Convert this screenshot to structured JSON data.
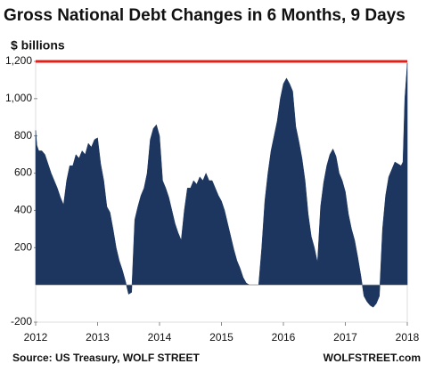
{
  "chart_data": {
    "type": "area",
    "title": "Gross National Debt Changes in 6 Months, 9 Days",
    "y_label": "$ billions",
    "source": "Source: US Treasury, WOLF STREET",
    "credit": "WOLFSTREET.com",
    "color": "#1d3660",
    "reference_line": {
      "value": 1200,
      "color": "#e0201b"
    },
    "xlim": [
      2012,
      2018
    ],
    "xticks": [
      2012,
      2013,
      2014,
      2015,
      2016,
      2017,
      2018
    ],
    "ylim": [
      -200,
      1200
    ],
    "yticks": [
      {
        "value": -200,
        "label": "-200"
      },
      200,
      400,
      600,
      800,
      {
        "value": 1000,
        "label": "1,000"
      },
      {
        "value": 1200,
        "label": "1,200"
      }
    ],
    "x": [
      2012.0,
      2012.02,
      2012.05,
      2012.1,
      2012.15,
      2012.2,
      2012.25,
      2012.3,
      2012.35,
      2012.4,
      2012.45,
      2012.5,
      2012.55,
      2012.6,
      2012.65,
      2012.7,
      2012.75,
      2012.8,
      2012.85,
      2012.9,
      2012.95,
      2013.0,
      2013.05,
      2013.1,
      2013.15,
      2013.2,
      2013.25,
      2013.3,
      2013.35,
      2013.4,
      2013.45,
      2013.5,
      2013.55,
      2013.6,
      2013.65,
      2013.7,
      2013.75,
      2013.8,
      2013.85,
      2013.9,
      2013.95,
      2014.0,
      2014.05,
      2014.1,
      2014.15,
      2014.2,
      2014.25,
      2014.3,
      2014.35,
      2014.4,
      2014.45,
      2014.5,
      2014.55,
      2014.6,
      2014.65,
      2014.7,
      2014.75,
      2014.8,
      2014.85,
      2014.9,
      2014.95,
      2015.0,
      2015.05,
      2015.1,
      2015.15,
      2015.2,
      2015.25,
      2015.3,
      2015.35,
      2015.4,
      2015.45,
      2015.5,
      2015.55,
      2015.6,
      2015.65,
      2015.7,
      2015.75,
      2015.8,
      2015.85,
      2015.9,
      2015.95,
      2016.0,
      2016.05,
      2016.1,
      2016.15,
      2016.2,
      2016.25,
      2016.3,
      2016.35,
      2016.4,
      2016.45,
      2016.5,
      2016.55,
      2016.6,
      2016.65,
      2016.7,
      2016.75,
      2016.8,
      2016.85,
      2016.9,
      2016.95,
      2017.0,
      2017.05,
      2017.1,
      2017.15,
      2017.2,
      2017.25,
      2017.3,
      2017.35,
      2017.4,
      2017.45,
      2017.5,
      2017.55,
      2017.6,
      2017.65,
      2017.7,
      2017.75,
      2017.8,
      2017.85,
      2017.9,
      2017.93,
      2017.96,
      2018.0
    ],
    "values": [
      830,
      750,
      720,
      720,
      700,
      650,
      600,
      560,
      520,
      470,
      430,
      560,
      640,
      640,
      700,
      680,
      720,
      700,
      760,
      740,
      780,
      790,
      650,
      560,
      420,
      390,
      300,
      200,
      130,
      80,
      20,
      -50,
      -40,
      350,
      420,
      480,
      520,
      600,
      780,
      840,
      860,
      800,
      560,
      520,
      470,
      400,
      330,
      280,
      240,
      400,
      520,
      520,
      560,
      540,
      580,
      560,
      600,
      560,
      560,
      520,
      480,
      450,
      400,
      330,
      260,
      190,
      130,
      90,
      40,
      10,
      0,
      0,
      0,
      0,
      200,
      450,
      600,
      720,
      800,
      880,
      1000,
      1080,
      1110,
      1080,
      1040,
      850,
      770,
      680,
      560,
      380,
      260,
      200,
      120,
      420,
      550,
      640,
      700,
      730,
      690,
      600,
      560,
      500,
      380,
      300,
      240,
      150,
      50,
      -60,
      -90,
      -110,
      -120,
      -100,
      -60,
      300,
      480,
      580,
      620,
      660,
      650,
      640,
      660,
      1000,
      1190
    ]
  }
}
